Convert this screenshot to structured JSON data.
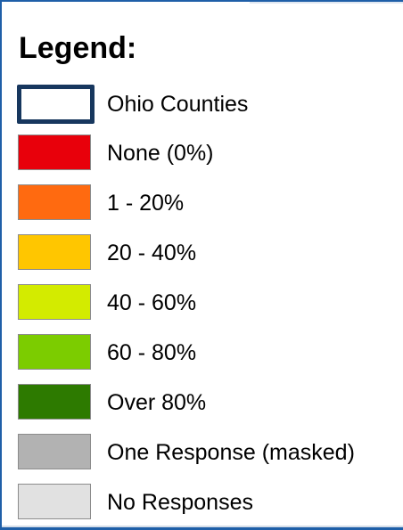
{
  "legend": {
    "title": "Legend:",
    "items": [
      {
        "label": "Ohio Counties",
        "color": "#ffffff",
        "border_color": "#17375e",
        "icon": "county-outline-swatch"
      },
      {
        "label": "None (0%)",
        "color": "#e8000b",
        "icon": "color-swatch"
      },
      {
        "label": "1 - 20%",
        "color": "#ff6a10",
        "icon": "color-swatch"
      },
      {
        "label": "20 - 40%",
        "color": "#ffc600",
        "icon": "color-swatch"
      },
      {
        "label": "40 - 60%",
        "color": "#d3eb00",
        "icon": "color-swatch"
      },
      {
        "label": "60 - 80%",
        "color": "#7ccc00",
        "icon": "color-swatch"
      },
      {
        "label": "Over 80%",
        "color": "#2d7a00",
        "icon": "color-swatch"
      },
      {
        "label": "One Response (masked)",
        "color": "#b2b2b2",
        "icon": "color-swatch"
      },
      {
        "label": "No Responses",
        "color": "#e1e1e1",
        "icon": "color-swatch"
      }
    ]
  }
}
